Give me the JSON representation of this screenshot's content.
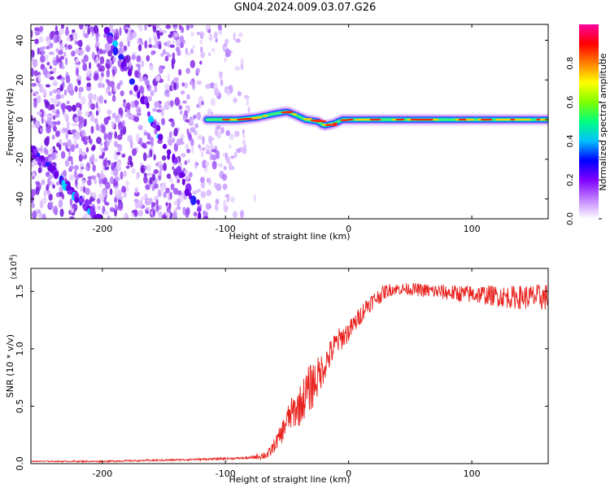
{
  "title": "GN04.2024.009.03.07.G26",
  "chart_data": [
    {
      "type": "heatmap",
      "xlabel": "Height of straight line (km)",
      "ylabel": "Frequency (Hz)",
      "xlim": [
        -258,
        162
      ],
      "ylim": [
        -50,
        48
      ],
      "xticks": [
        -200,
        -100,
        0,
        100
      ],
      "xtick_labels": [
        "-200",
        "-100",
        "0",
        "100"
      ],
      "yticks": [
        -40,
        -20,
        0,
        20,
        40
      ],
      "ytick_labels": [
        "-40",
        "-20",
        "0",
        "20",
        "40"
      ],
      "colorbar": {
        "label": "Normalized spectral amplitude",
        "range": [
          0,
          1
        ],
        "ticks": [
          0,
          0.2,
          0.4,
          0.6,
          0.8
        ],
        "tick_labels": [
          "0.0",
          "0.2",
          "0.4",
          "0.6",
          "0.8"
        ],
        "colors": [
          "#ffffff",
          "#c080ff",
          "#8000ff",
          "#0000ff",
          "#00c0ff",
          "#00ff80",
          "#80ff00",
          "#ffff00",
          "#ff8000",
          "#ff0000",
          "#ff00a0"
        ]
      },
      "features": {
        "carrier_track": {
          "x_start": -115,
          "x_end": 162,
          "points": [
            [
              -115,
              0
            ],
            [
              -90,
              0
            ],
            [
              -75,
              1
            ],
            [
              -60,
              3
            ],
            [
              -50,
              4
            ],
            [
              -42,
              2
            ],
            [
              -35,
              0
            ],
            [
              -25,
              -1
            ],
            [
              -20,
              -3
            ],
            [
              -12,
              -2
            ],
            [
              -5,
              0
            ],
            [
              0,
              0
            ],
            [
              162,
              0
            ]
          ]
        },
        "diagonal_tracks": [
          {
            "x_start": -205,
            "y_start": 55,
            "x_end": -118,
            "y_end": -50
          },
          {
            "x_start": -258,
            "y_start": -15,
            "x_end": -203,
            "y_end": -50
          }
        ],
        "noise_region": {
          "x_start": -258,
          "x_end": -85
        }
      }
    },
    {
      "type": "line",
      "xlabel": "Height of straight line (km)",
      "ylabel": "SNR (10 * v/v)",
      "multiplier_label": "(x10",
      "multiplier_exp": "4",
      "xlim": [
        -258,
        162
      ],
      "ylim": [
        0,
        1.7
      ],
      "xticks": [
        -200,
        -100,
        0,
        100
      ],
      "xtick_labels": [
        "-200",
        "-100",
        "0",
        "100"
      ],
      "yticks": [
        0,
        0.5,
        1.0,
        1.5
      ],
      "ytick_labels": [
        "0.0",
        "0.5",
        "1.0",
        "1.5"
      ],
      "color": "#e8211c",
      "envelope": [
        [
          -258,
          0.02
        ],
        [
          -200,
          0.02
        ],
        [
          -150,
          0.03
        ],
        [
          -110,
          0.04
        ],
        [
          -80,
          0.05
        ],
        [
          -65,
          0.08
        ],
        [
          -55,
          0.25
        ],
        [
          -50,
          0.38
        ],
        [
          -45,
          0.45
        ],
        [
          -40,
          0.5
        ],
        [
          -35,
          0.6
        ],
        [
          -30,
          0.68
        ],
        [
          -25,
          0.75
        ],
        [
          -20,
          0.85
        ],
        [
          -15,
          0.95
        ],
        [
          -10,
          1.05
        ],
        [
          -5,
          1.1
        ],
        [
          0,
          1.15
        ],
        [
          5,
          1.22
        ],
        [
          10,
          1.3
        ],
        [
          15,
          1.38
        ],
        [
          20,
          1.42
        ],
        [
          25,
          1.46
        ],
        [
          30,
          1.5
        ],
        [
          35,
          1.52
        ],
        [
          50,
          1.52
        ],
        [
          70,
          1.5
        ],
        [
          90,
          1.48
        ],
        [
          110,
          1.47
        ],
        [
          130,
          1.45
        ],
        [
          162,
          1.45
        ]
      ],
      "noise_amplitude": [
        [
          -258,
          0.005
        ],
        [
          -80,
          0.01
        ],
        [
          -60,
          0.06
        ],
        [
          -45,
          0.15
        ],
        [
          -30,
          0.22
        ],
        [
          -20,
          0.14
        ],
        [
          0,
          0.09
        ],
        [
          25,
          0.07
        ],
        [
          40,
          0.05
        ],
        [
          100,
          0.08
        ],
        [
          162,
          0.12
        ]
      ]
    }
  ]
}
